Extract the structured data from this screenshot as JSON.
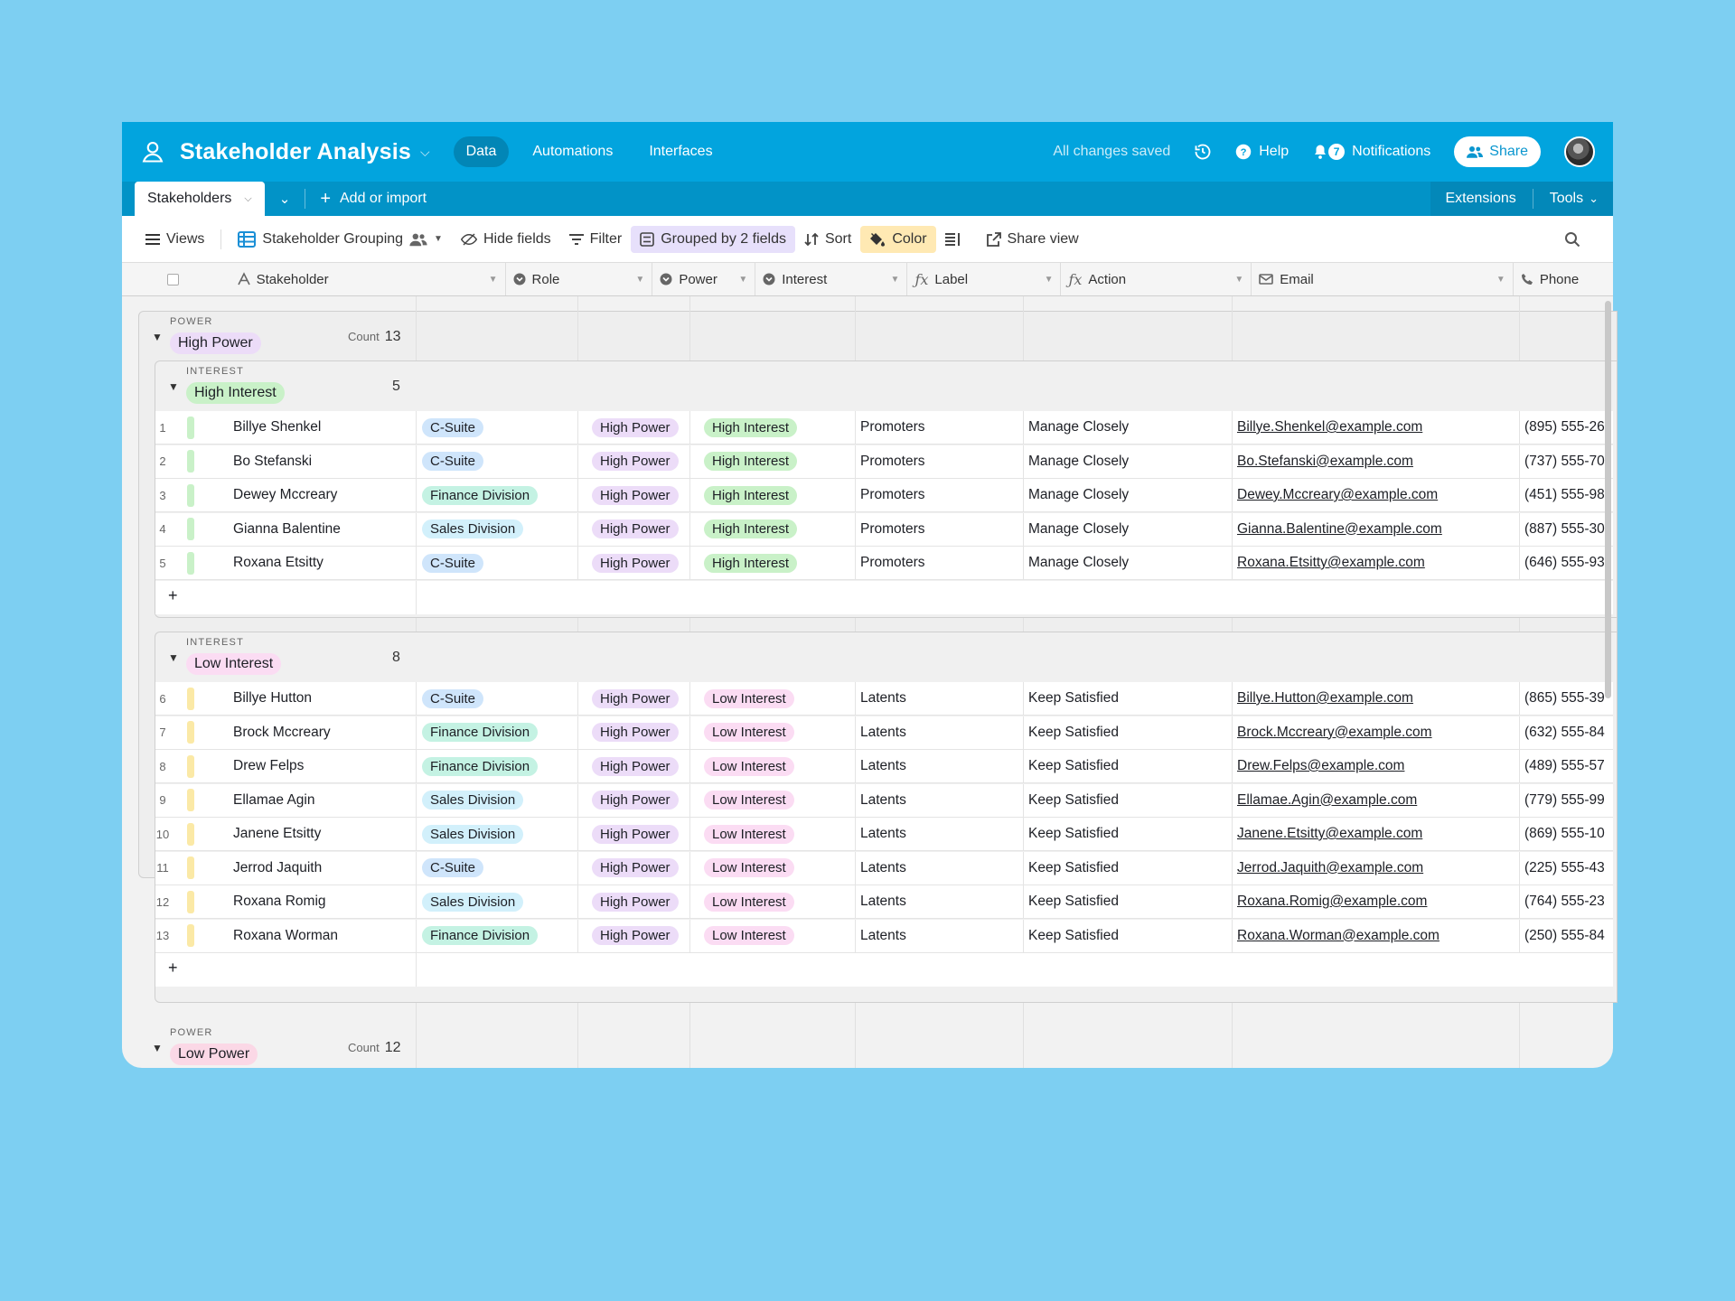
{
  "app": {
    "title": "Stakeholder Analysis",
    "nav_tabs": [
      "Data",
      "Automations",
      "Interfaces"
    ],
    "saved_status": "All changes saved",
    "help_label": "Help",
    "notifications_label": "Notifications",
    "notifications_count": "7",
    "share_label": "Share"
  },
  "tabbar": {
    "active_table": "Stakeholders",
    "add_import": "Add or import",
    "extensions": "Extensions",
    "tools": "Tools"
  },
  "toolbar": {
    "views": "Views",
    "view_name": "Stakeholder Grouping",
    "hide_fields": "Hide fields",
    "filter": "Filter",
    "grouped": "Grouped by 2 fields",
    "sort": "Sort",
    "color": "Color",
    "share_view": "Share view"
  },
  "columns": [
    "Stakeholder",
    "Role",
    "Power",
    "Interest",
    "Label",
    "Action",
    "Email",
    "Phone"
  ],
  "groups": {
    "power_label": "POWER",
    "interest_label": "INTEREST",
    "count_label": "Count",
    "high_power": {
      "name": "High Power",
      "count": "13"
    },
    "high_interest": {
      "name": "High Interest",
      "count": "5"
    },
    "low_interest": {
      "name": "Low Interest",
      "count": "8"
    },
    "low_power": {
      "name": "Low Power",
      "count": "12"
    }
  },
  "rows_high_interest": [
    {
      "n": "1",
      "name": "Billye Shenkel",
      "role": "C-Suite",
      "power": "High Power",
      "interest": "High Interest",
      "label": "Promoters",
      "action": "Manage Closely",
      "email": "Billye.Shenkel@example.com",
      "phone": "(895) 555-26"
    },
    {
      "n": "2",
      "name": "Bo Stefanski",
      "role": "C-Suite",
      "power": "High Power",
      "interest": "High Interest",
      "label": "Promoters",
      "action": "Manage Closely",
      "email": "Bo.Stefanski@example.com",
      "phone": "(737) 555-70"
    },
    {
      "n": "3",
      "name": "Dewey Mccreary",
      "role": "Finance Division",
      "power": "High Power",
      "interest": "High Interest",
      "label": "Promoters",
      "action": "Manage Closely",
      "email": "Dewey.Mccreary@example.com",
      "phone": "(451) 555-98"
    },
    {
      "n": "4",
      "name": "Gianna Balentine",
      "role": "Sales Division",
      "power": "High Power",
      "interest": "High Interest",
      "label": "Promoters",
      "action": "Manage Closely",
      "email": "Gianna.Balentine@example.com",
      "phone": "(887) 555-30"
    },
    {
      "n": "5",
      "name": "Roxana Etsitty",
      "role": "C-Suite",
      "power": "High Power",
      "interest": "High Interest",
      "label": "Promoters",
      "action": "Manage Closely",
      "email": "Roxana.Etsitty@example.com",
      "phone": "(646) 555-93"
    }
  ],
  "rows_low_interest": [
    {
      "n": "6",
      "name": "Billye Hutton",
      "role": "C-Suite",
      "power": "High Power",
      "interest": "Low Interest",
      "label": "Latents",
      "action": "Keep Satisfied",
      "email": "Billye.Hutton@example.com",
      "phone": "(865) 555-39"
    },
    {
      "n": "7",
      "name": "Brock Mccreary",
      "role": "Finance Division",
      "power": "High Power",
      "interest": "Low Interest",
      "label": "Latents",
      "action": "Keep Satisfied",
      "email": "Brock.Mccreary@example.com",
      "phone": "(632) 555-84"
    },
    {
      "n": "8",
      "name": "Drew Felps",
      "role": "Finance Division",
      "power": "High Power",
      "interest": "Low Interest",
      "label": "Latents",
      "action": "Keep Satisfied",
      "email": "Drew.Felps@example.com",
      "phone": "(489) 555-57"
    },
    {
      "n": "9",
      "name": "Ellamae Agin",
      "role": "Sales Division",
      "power": "High Power",
      "interest": "Low Interest",
      "label": "Latents",
      "action": "Keep Satisfied",
      "email": "Ellamae.Agin@example.com",
      "phone": "(779) 555-99"
    },
    {
      "n": "10",
      "name": "Janene Etsitty",
      "role": "Sales Division",
      "power": "High Power",
      "interest": "Low Interest",
      "label": "Latents",
      "action": "Keep Satisfied",
      "email": "Janene.Etsitty@example.com",
      "phone": "(869) 555-10"
    },
    {
      "n": "11",
      "name": "Jerrod Jaquith",
      "role": "C-Suite",
      "power": "High Power",
      "interest": "Low Interest",
      "label": "Latents",
      "action": "Keep Satisfied",
      "email": "Jerrod.Jaquith@example.com",
      "phone": "(225) 555-43"
    },
    {
      "n": "12",
      "name": "Roxana Romig",
      "role": "Sales Division",
      "power": "High Power",
      "interest": "Low Interest",
      "label": "Latents",
      "action": "Keep Satisfied",
      "email": "Roxana.Romig@example.com",
      "phone": "(764) 555-23"
    },
    {
      "n": "13",
      "name": "Roxana Worman",
      "role": "Finance Division",
      "power": "High Power",
      "interest": "Low Interest",
      "label": "Latents",
      "action": "Keep Satisfied",
      "email": "Roxana.Worman@example.com",
      "phone": "(250) 555-84"
    }
  ],
  "colors": {
    "topbar": "#02a4de",
    "role_csuite": "#cfe5fb",
    "role_finance": "#c4f2e3",
    "role_sales": "#d2f0fb",
    "power_high": "#ecdcf8",
    "interest_high": "#c9f1c8",
    "interest_low": "#fbdcf3",
    "low_power": "#fbd8e6"
  }
}
